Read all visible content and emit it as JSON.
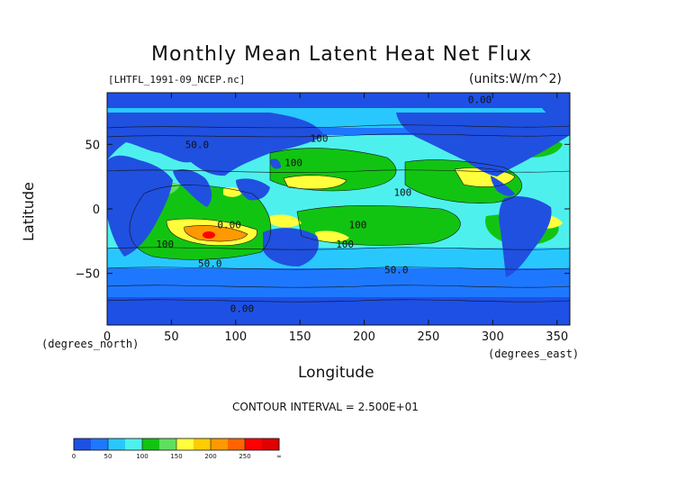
{
  "chart_data": {
    "type": "heatmap",
    "title": "Monthly Mean Latent Heat Net Flux",
    "subtitle_left": "[LHTFL_1991-09_NCEP.nc]",
    "subtitle_right": "(units:W/m^2)",
    "xlabel": "Longitude",
    "ylabel": "Latitude",
    "x_unit_label": "(degrees_east)",
    "y_unit_label": "(degrees_north)",
    "xlim": [
      0,
      360
    ],
    "ylim": [
      -90,
      90
    ],
    "x_ticks": [
      "0",
      "50",
      "100",
      "150",
      "200",
      "250",
      "300",
      "350"
    ],
    "y_ticks": [
      "50",
      "0",
      "−50"
    ],
    "footer": "CONTOUR INTERVAL = 2.500E+01",
    "contour_labels": [
      "0.00",
      "100",
      "50.0",
      "100",
      "100",
      "100",
      "50.0",
      "0.00",
      "50.0",
      "100",
      "0.00",
      "100"
    ],
    "colorbar": {
      "labels": [
        "0",
        "50",
        "100",
        "150",
        "200",
        "250",
        "∞"
      ],
      "colors": [
        "#1e50e6",
        "#1e78ff",
        "#28c8ff",
        "#4ef0ee",
        "#12c412",
        "#5ee05e",
        "#ffff3c",
        "#ffcd00",
        "#ff9900",
        "#ff6400",
        "#ff0000",
        "#e00000"
      ]
    },
    "colors": {
      "land": "#2050e0",
      "background": "#ffffff",
      "ink": "#111111"
    }
  }
}
